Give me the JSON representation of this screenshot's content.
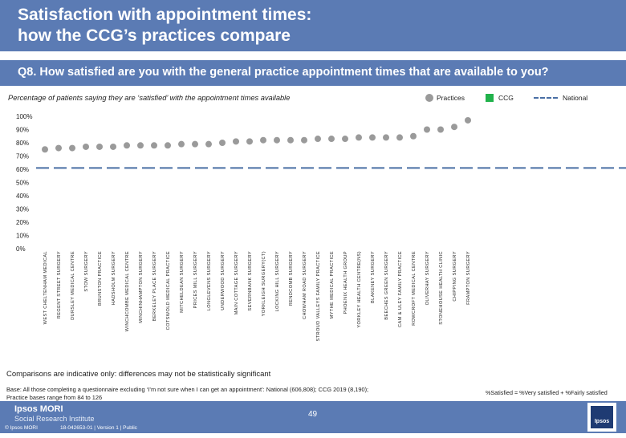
{
  "header": {
    "title": "Satisfaction with appointment times:\nhow the CCG’s practices compare"
  },
  "question": "Q8. How satisfied are you with the general practice appointment times that are available to you?",
  "subtitle": "Percentage of patients saying they are ‘satisfied’ with the appointment times available",
  "legend": {
    "practices": "Practices",
    "ccg": "CCG",
    "national": "National"
  },
  "colors": {
    "brand": "#5b7bb4",
    "practice_marker": "#9a9a9a",
    "ccg": "#21b24b",
    "national": "#4a6fa5"
  },
  "chart_data": {
    "type": "scatter",
    "title": "Percentage of patients saying they are ‘satisfied’ with the appointment times available",
    "ylim": [
      0,
      100
    ],
    "yticks": [
      "0%",
      "10%",
      "20%",
      "30%",
      "40%",
      "50%",
      "60%",
      "70%",
      "80%",
      "90%",
      "100%"
    ],
    "national_value": 61,
    "categories": [
      "WEST CHELTENHAM MEDICAL",
      "REGENT STREET SURGERY",
      "DURSLEY MEDICAL CENTRE",
      "STOW SURGERY",
      "BRUNSTON PRACTICE",
      "HADSHOLM SURGERY",
      "WINCHCOMBE MEDICAL CENTRE",
      "MINCHINHAMPTON SURGERY",
      "BERKELEY PLACE SURGERY",
      "COTSWOLD MEDICAL PRACTICE",
      "MITCHELDEAN SURGERY",
      "PRICES MILL SURGERY",
      "LONGLEVENS SURGERY",
      "UNDERWOOD SURGERY",
      "MAIN COTTAGE SURGERY",
      "SEVERNBANK SURGERY",
      "YORKLEIGH SURGERY(CT)",
      "LOCKING HILL SURGERY",
      "RENDCOMB SURGERY",
      "CHOWHAM ROAD SURGERY",
      "STROUD VALLEYS FAMILY PRACTICE",
      "MYTHE MEDICAL PRACTICE",
      "PHOENIX HEALTH GROUP",
      "YORKLEY HEALTH CENTRE(NS)",
      "BLAKENEY SURGERY",
      "BEECHES GREEN SURGERY",
      "CAM & ULEY FAMILY PRACTICE",
      "ROWCROFT MEDICAL CENTRE",
      "OLIVERHAY SURGERY",
      "STONEHOUSE HEALTH CLINIC",
      "CHIPPING SURGERY",
      "FRAMPTON SURGERY"
    ],
    "values": [
      75,
      76,
      76,
      77,
      77,
      77,
      78,
      78,
      78,
      78,
      79,
      79,
      79,
      80,
      81,
      81,
      82,
      82,
      82,
      82,
      83,
      83,
      83,
      84,
      84,
      84,
      84,
      85,
      90,
      90,
      92,
      97
    ]
  },
  "note": "Comparisons are indicative only: differences may not be statistically significant",
  "base": "Base: All those completing a questionnaire excluding ‘I’m not sure when I can get an appointment’: National (606,808); CCG 2019 (8,190);\nPractice bases range from 84 to 126",
  "satisfied_definition": "%Satisfied = %Very satisfied + %Fairly satisfied",
  "footer": {
    "logo_line1": "Ipsos MORI",
    "logo_line2": "Social Research Institute",
    "copyright": "© Ipsos MORI",
    "reference": "18-042653-01 | Version 1 | Public",
    "page_number": "49",
    "badge_text": "Ipsos"
  }
}
